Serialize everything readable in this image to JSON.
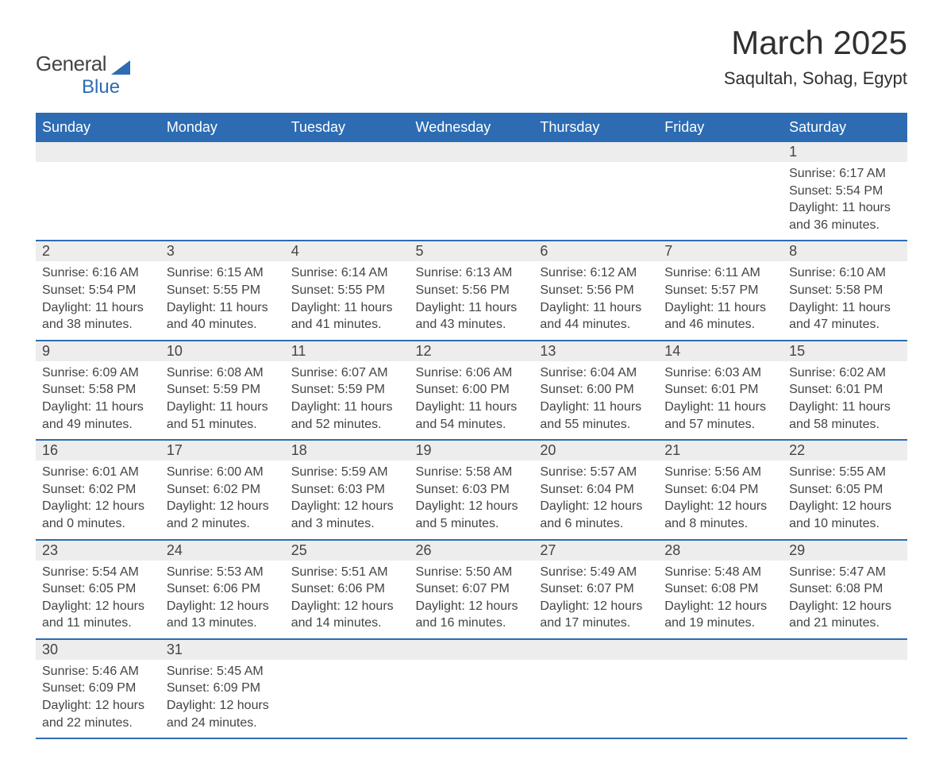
{
  "logo": {
    "word1": "General",
    "word2": "Blue"
  },
  "title": "March 2025",
  "location": "Saqultah, Sohag, Egypt",
  "header_bg": "#2d6cb3",
  "header_fg": "#ffffff",
  "row_bg": "#ededed",
  "text_color": "#444444",
  "border_color": "#2d6cb3",
  "days_of_week": [
    "Sunday",
    "Monday",
    "Tuesday",
    "Wednesday",
    "Thursday",
    "Friday",
    "Saturday"
  ],
  "weeks": [
    [
      null,
      null,
      null,
      null,
      null,
      null,
      {
        "n": "1",
        "sunrise": "6:17 AM",
        "sunset": "5:54 PM",
        "dl": "11 hours and 36 minutes."
      }
    ],
    [
      {
        "n": "2",
        "sunrise": "6:16 AM",
        "sunset": "5:54 PM",
        "dl": "11 hours and 38 minutes."
      },
      {
        "n": "3",
        "sunrise": "6:15 AM",
        "sunset": "5:55 PM",
        "dl": "11 hours and 40 minutes."
      },
      {
        "n": "4",
        "sunrise": "6:14 AM",
        "sunset": "5:55 PM",
        "dl": "11 hours and 41 minutes."
      },
      {
        "n": "5",
        "sunrise": "6:13 AM",
        "sunset": "5:56 PM",
        "dl": "11 hours and 43 minutes."
      },
      {
        "n": "6",
        "sunrise": "6:12 AM",
        "sunset": "5:56 PM",
        "dl": "11 hours and 44 minutes."
      },
      {
        "n": "7",
        "sunrise": "6:11 AM",
        "sunset": "5:57 PM",
        "dl": "11 hours and 46 minutes."
      },
      {
        "n": "8",
        "sunrise": "6:10 AM",
        "sunset": "5:58 PM",
        "dl": "11 hours and 47 minutes."
      }
    ],
    [
      {
        "n": "9",
        "sunrise": "6:09 AM",
        "sunset": "5:58 PM",
        "dl": "11 hours and 49 minutes."
      },
      {
        "n": "10",
        "sunrise": "6:08 AM",
        "sunset": "5:59 PM",
        "dl": "11 hours and 51 minutes."
      },
      {
        "n": "11",
        "sunrise": "6:07 AM",
        "sunset": "5:59 PM",
        "dl": "11 hours and 52 minutes."
      },
      {
        "n": "12",
        "sunrise": "6:06 AM",
        "sunset": "6:00 PM",
        "dl": "11 hours and 54 minutes."
      },
      {
        "n": "13",
        "sunrise": "6:04 AM",
        "sunset": "6:00 PM",
        "dl": "11 hours and 55 minutes."
      },
      {
        "n": "14",
        "sunrise": "6:03 AM",
        "sunset": "6:01 PM",
        "dl": "11 hours and 57 minutes."
      },
      {
        "n": "15",
        "sunrise": "6:02 AM",
        "sunset": "6:01 PM",
        "dl": "11 hours and 58 minutes."
      }
    ],
    [
      {
        "n": "16",
        "sunrise": "6:01 AM",
        "sunset": "6:02 PM",
        "dl": "12 hours and 0 minutes."
      },
      {
        "n": "17",
        "sunrise": "6:00 AM",
        "sunset": "6:02 PM",
        "dl": "12 hours and 2 minutes."
      },
      {
        "n": "18",
        "sunrise": "5:59 AM",
        "sunset": "6:03 PM",
        "dl": "12 hours and 3 minutes."
      },
      {
        "n": "19",
        "sunrise": "5:58 AM",
        "sunset": "6:03 PM",
        "dl": "12 hours and 5 minutes."
      },
      {
        "n": "20",
        "sunrise": "5:57 AM",
        "sunset": "6:04 PM",
        "dl": "12 hours and 6 minutes."
      },
      {
        "n": "21",
        "sunrise": "5:56 AM",
        "sunset": "6:04 PM",
        "dl": "12 hours and 8 minutes."
      },
      {
        "n": "22",
        "sunrise": "5:55 AM",
        "sunset": "6:05 PM",
        "dl": "12 hours and 10 minutes."
      }
    ],
    [
      {
        "n": "23",
        "sunrise": "5:54 AM",
        "sunset": "6:05 PM",
        "dl": "12 hours and 11 minutes."
      },
      {
        "n": "24",
        "sunrise": "5:53 AM",
        "sunset": "6:06 PM",
        "dl": "12 hours and 13 minutes."
      },
      {
        "n": "25",
        "sunrise": "5:51 AM",
        "sunset": "6:06 PM",
        "dl": "12 hours and 14 minutes."
      },
      {
        "n": "26",
        "sunrise": "5:50 AM",
        "sunset": "6:07 PM",
        "dl": "12 hours and 16 minutes."
      },
      {
        "n": "27",
        "sunrise": "5:49 AM",
        "sunset": "6:07 PM",
        "dl": "12 hours and 17 minutes."
      },
      {
        "n": "28",
        "sunrise": "5:48 AM",
        "sunset": "6:08 PM",
        "dl": "12 hours and 19 minutes."
      },
      {
        "n": "29",
        "sunrise": "5:47 AM",
        "sunset": "6:08 PM",
        "dl": "12 hours and 21 minutes."
      }
    ],
    [
      {
        "n": "30",
        "sunrise": "5:46 AM",
        "sunset": "6:09 PM",
        "dl": "12 hours and 22 minutes."
      },
      {
        "n": "31",
        "sunrise": "5:45 AM",
        "sunset": "6:09 PM",
        "dl": "12 hours and 24 minutes."
      },
      null,
      null,
      null,
      null,
      null
    ]
  ],
  "labels": {
    "sunrise": "Sunrise: ",
    "sunset": "Sunset: ",
    "daylight": "Daylight: "
  }
}
